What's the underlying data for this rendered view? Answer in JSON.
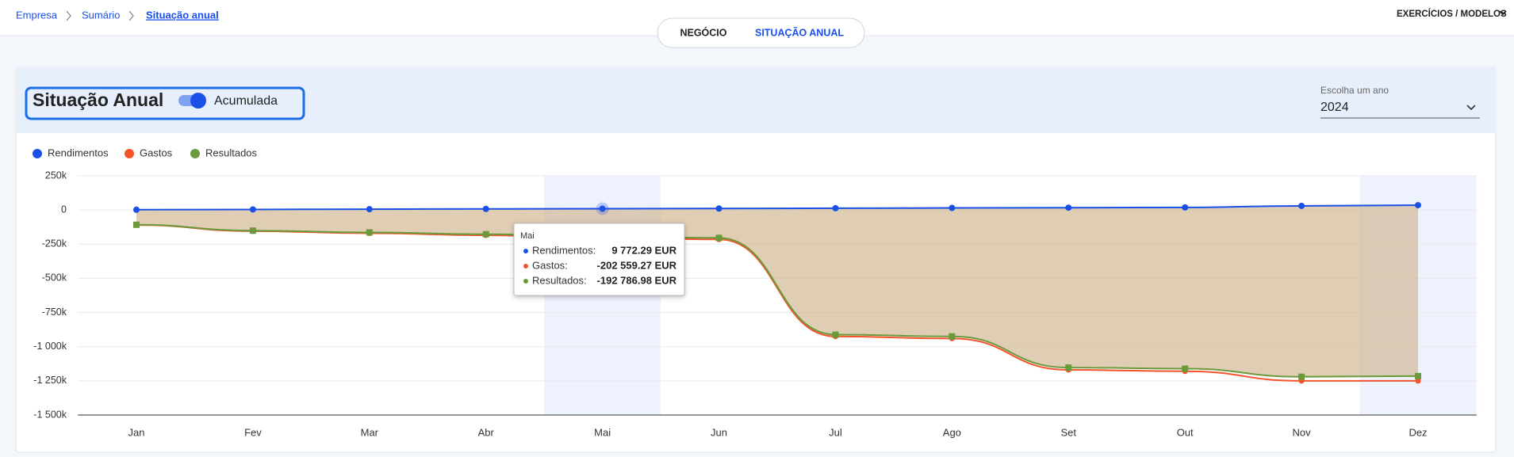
{
  "breadcrumb": [
    "Empresa",
    "Sumário",
    "Situação anual"
  ],
  "tabs": [
    "NEGÓCIO",
    "SITUAÇÃO ANUAL"
  ],
  "menu": "EXERCÍCIOS / MODELOS",
  "panel": {
    "title": "Situação Anual",
    "toggle_label": "Acumulada",
    "year_label": "Escolha um ano",
    "year": "2024"
  },
  "chart_data": {
    "type": "line",
    "categories": [
      "Jan",
      "Fev",
      "Mar",
      "Abr",
      "Mai",
      "Jun",
      "Jul",
      "Ago",
      "Set",
      "Out",
      "Nov",
      "Dez"
    ],
    "series": [
      {
        "name": "Rendimentos",
        "color": "#1a4fe8",
        "values": [
          2000,
          4000,
          6000,
          8000,
          9772.29,
          11000,
          13000,
          15000,
          17000,
          19000,
          30000,
          35000
        ]
      },
      {
        "name": "Gastos",
        "color": "#f4532c",
        "values": [
          -110000,
          -155000,
          -170000,
          -185000,
          -202559.27,
          -215000,
          -925000,
          -940000,
          -1170000,
          -1180000,
          -1250000,
          -1250000
        ]
      },
      {
        "name": "Resultados",
        "color": "#6a9a3c",
        "values": [
          -108000,
          -151000,
          -164000,
          -177000,
          -192786.98,
          -204000,
          -912000,
          -925000,
          -1153000,
          -1161000,
          -1220000,
          -1215000
        ]
      }
    ],
    "ylim": [
      -1500000,
      250000
    ],
    "yticks": [
      {
        "value": 250000,
        "label": "250k"
      },
      0,
      {
        "value": -250000,
        "label": "-250k"
      },
      {
        "value": -500000,
        "label": "-500k"
      },
      {
        "value": -750000,
        "label": "-750k"
      },
      {
        "value": -1000000,
        "label": "-1 000k"
      },
      {
        "value": -1250000,
        "label": "-1 250k"
      },
      {
        "value": -1500000,
        "label": "-1 500k"
      }
    ],
    "grid": true,
    "legend": "top-left",
    "area_color": "#d2b894"
  },
  "tooltip": {
    "category": "Mai",
    "rows": [
      {
        "label": "Rendimentos:",
        "value": "9 772.29 EUR"
      },
      {
        "label": "Gastos:",
        "value": "-202 559.27 EUR"
      },
      {
        "label": "Resultados:",
        "value": "-192 786.98 EUR"
      }
    ]
  }
}
